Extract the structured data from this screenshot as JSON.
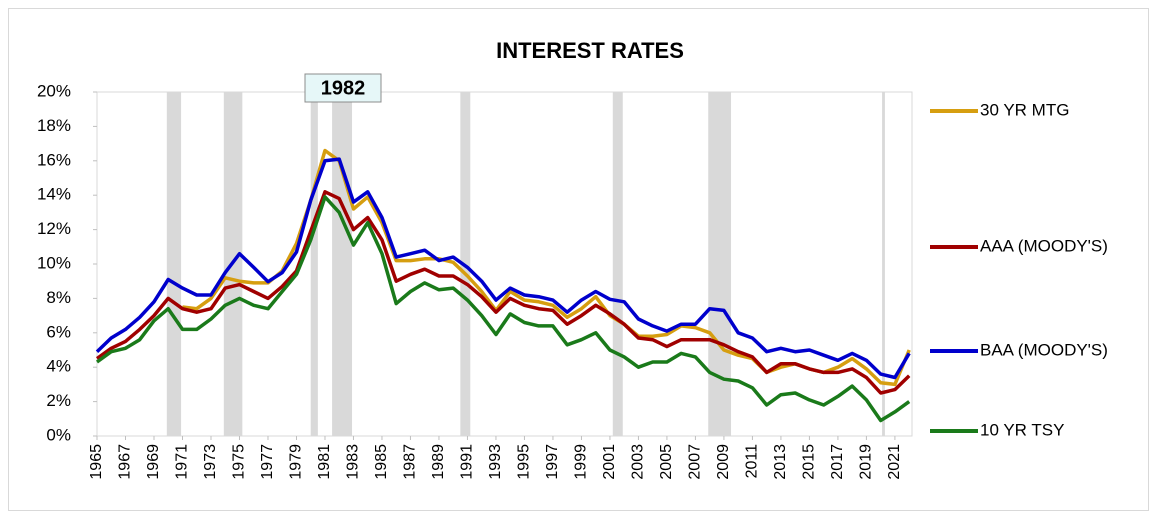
{
  "chart_data": {
    "type": "line",
    "title": "INTEREST RATES",
    "annotation": "1982",
    "x": [
      1965,
      1966,
      1967,
      1968,
      1969,
      1970,
      1971,
      1972,
      1973,
      1974,
      1975,
      1976,
      1977,
      1978,
      1979,
      1980,
      1981,
      1982,
      1983,
      1984,
      1985,
      1986,
      1987,
      1988,
      1989,
      1990,
      1991,
      1992,
      1993,
      1994,
      1995,
      1996,
      1997,
      1998,
      1999,
      2000,
      2001,
      2002,
      2003,
      2004,
      2005,
      2006,
      2007,
      2008,
      2009,
      2010,
      2011,
      2012,
      2013,
      2014,
      2015,
      2016,
      2017,
      2018,
      2019,
      2020,
      2021,
      2022
    ],
    "xlim": [
      1965,
      2022.2
    ],
    "xticks": [
      1965,
      1967,
      1969,
      1971,
      1973,
      1975,
      1977,
      1979,
      1981,
      1983,
      1985,
      1987,
      1989,
      1991,
      1993,
      1995,
      1997,
      1999,
      2001,
      2003,
      2005,
      2007,
      2009,
      2011,
      2013,
      2015,
      2017,
      2019,
      2021
    ],
    "ylim": [
      0,
      20
    ],
    "yticks": [
      {
        "value": 0,
        "label": "0%"
      },
      {
        "value": 2,
        "label": "2%"
      },
      {
        "value": 4,
        "label": "4%"
      },
      {
        "value": 6,
        "label": "6%"
      },
      {
        "value": 8,
        "label": "8%"
      },
      {
        "value": 10,
        "label": "10%"
      },
      {
        "value": 12,
        "label": "12%"
      },
      {
        "value": 14,
        "label": "14%"
      },
      {
        "value": 16,
        "label": "16%"
      },
      {
        "value": 18,
        "label": "18%"
      },
      {
        "value": 20,
        "label": "20%"
      }
    ],
    "recessions": [
      [
        1969.9,
        1970.9
      ],
      [
        1973.9,
        1975.2
      ],
      [
        1980.0,
        1980.5
      ],
      [
        1981.5,
        1982.9
      ],
      [
        1990.5,
        1991.2
      ],
      [
        2001.2,
        2001.9
      ],
      [
        2007.9,
        2009.5
      ],
      [
        2020.1,
        2020.3
      ]
    ],
    "series": [
      {
        "name": "30 YR MTG",
        "color": "#d69e10",
        "values": [
          null,
          null,
          null,
          null,
          null,
          null,
          7.5,
          7.4,
          8.0,
          9.2,
          9.0,
          8.9,
          8.9,
          9.6,
          11.2,
          13.7,
          16.6,
          16.0,
          13.2,
          13.9,
          12.4,
          10.2,
          10.2,
          10.3,
          10.3,
          10.1,
          9.3,
          8.4,
          7.3,
          8.4,
          7.9,
          7.8,
          7.6,
          6.9,
          7.4,
          8.1,
          7.0,
          6.5,
          5.8,
          5.8,
          5.9,
          6.4,
          6.3,
          6.0,
          5.0,
          4.7,
          4.5,
          3.7,
          4.0,
          4.2,
          3.9,
          3.7,
          4.0,
          4.5,
          3.9,
          3.1,
          3.0,
          5.0
        ]
      },
      {
        "name": "AAA (MOODY'S)",
        "color": "#a00000",
        "values": [
          4.5,
          5.1,
          5.5,
          6.2,
          7.0,
          8.0,
          7.4,
          7.2,
          7.4,
          8.6,
          8.8,
          8.4,
          8.0,
          8.7,
          9.6,
          11.9,
          14.2,
          13.8,
          12.0,
          12.7,
          11.4,
          9.0,
          9.4,
          9.7,
          9.3,
          9.3,
          8.8,
          8.1,
          7.2,
          8.0,
          7.6,
          7.4,
          7.3,
          6.5,
          7.0,
          7.6,
          7.1,
          6.5,
          5.7,
          5.6,
          5.2,
          5.6,
          5.6,
          5.6,
          5.3,
          4.9,
          4.6,
          3.7,
          4.2,
          4.2,
          3.9,
          3.7,
          3.7,
          3.9,
          3.4,
          2.5,
          2.7,
          3.5
        ]
      },
      {
        "name": "BAA (MOODY'S)",
        "color": "#0000cc",
        "values": [
          4.9,
          5.7,
          6.2,
          6.9,
          7.8,
          9.1,
          8.6,
          8.2,
          8.2,
          9.5,
          10.6,
          9.8,
          8.97,
          9.5,
          10.7,
          13.7,
          16.0,
          16.1,
          13.6,
          14.2,
          12.7,
          10.4,
          10.6,
          10.8,
          10.2,
          10.4,
          9.8,
          9.0,
          7.9,
          8.6,
          8.2,
          8.1,
          7.9,
          7.2,
          7.9,
          8.4,
          7.95,
          7.8,
          6.8,
          6.4,
          6.1,
          6.5,
          6.5,
          7.4,
          7.3,
          6.0,
          5.7,
          4.9,
          5.1,
          4.9,
          5.0,
          4.7,
          4.4,
          4.8,
          4.4,
          3.6,
          3.4,
          4.8
        ]
      },
      {
        "name": "10 YR TSY",
        "color": "#1a7a1a",
        "values": [
          4.3,
          4.9,
          5.1,
          5.6,
          6.7,
          7.4,
          6.2,
          6.2,
          6.8,
          7.6,
          8.0,
          7.6,
          7.4,
          8.4,
          9.4,
          11.4,
          13.9,
          13.0,
          11.1,
          12.4,
          10.6,
          7.7,
          8.4,
          8.9,
          8.5,
          8.6,
          7.9,
          7.0,
          5.9,
          7.1,
          6.6,
          6.4,
          6.4,
          5.3,
          5.6,
          6.0,
          5.0,
          4.6,
          4.0,
          4.3,
          4.3,
          4.8,
          4.6,
          3.7,
          3.3,
          3.2,
          2.8,
          1.8,
          2.4,
          2.5,
          2.1,
          1.8,
          2.3,
          2.9,
          2.1,
          0.9,
          1.4,
          2.0
        ]
      }
    ]
  }
}
